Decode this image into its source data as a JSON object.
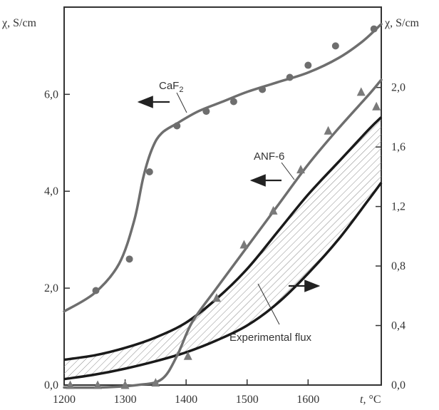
{
  "chart_data": {
    "type": "line",
    "x_range": [
      1200,
      1720
    ],
    "left_axis": {
      "label_chi": "χ",
      "label_unit": ", S/cm",
      "range": [
        0,
        7.8
      ],
      "ticks": [
        "0,0",
        "2,0",
        "4,0",
        "6,0"
      ],
      "tick_values": [
        0,
        2,
        4,
        6
      ]
    },
    "right_axis": {
      "label_chi": "χ",
      "label_unit": ", S/cm",
      "range": [
        0,
        2.54
      ],
      "ticks": [
        "0,0",
        "0,4",
        "0,8",
        "1,2",
        "1,6",
        "2,0"
      ],
      "tick_values": [
        0,
        0.4,
        0.8,
        1.2,
        1.6,
        2.0
      ]
    },
    "x_axis": {
      "label_t": "t",
      "label_unit": ", °C",
      "ticks": [
        "1200",
        "1300",
        "1400",
        "1500",
        "1600"
      ],
      "tick_values": [
        1200,
        1300,
        1400,
        1500,
        1600
      ]
    },
    "grid": false,
    "series": [
      {
        "name": "CaF",
        "subscript": "2",
        "axis": "left",
        "marker": "circle",
        "points": [
          [
            1252,
            1.95
          ],
          [
            1307,
            2.6
          ],
          [
            1340,
            4.4
          ],
          [
            1385,
            5.35
          ],
          [
            1433,
            5.65
          ],
          [
            1478,
            5.85
          ],
          [
            1525,
            6.1
          ],
          [
            1570,
            6.35
          ],
          [
            1600,
            6.6
          ],
          [
            1645,
            7.0
          ],
          [
            1708,
            7.35
          ]
        ],
        "curve": [
          [
            1200,
            1.52
          ],
          [
            1250,
            1.9
          ],
          [
            1290,
            2.5
          ],
          [
            1315,
            3.4
          ],
          [
            1330,
            4.3
          ],
          [
            1345,
            4.9
          ],
          [
            1360,
            5.2
          ],
          [
            1385,
            5.4
          ],
          [
            1420,
            5.65
          ],
          [
            1460,
            5.85
          ],
          [
            1500,
            6.05
          ],
          [
            1550,
            6.25
          ],
          [
            1600,
            6.45
          ],
          [
            1650,
            6.75
          ],
          [
            1690,
            7.1
          ],
          [
            1720,
            7.45
          ]
        ]
      },
      {
        "name": "ANF-6",
        "axis": "left",
        "marker": "triangle",
        "points": [
          [
            1210,
            0.0
          ],
          [
            1255,
            0.0
          ],
          [
            1300,
            0.0
          ],
          [
            1350,
            0.05
          ],
          [
            1403,
            0.6
          ],
          [
            1450,
            1.8
          ],
          [
            1495,
            2.9
          ],
          [
            1543,
            3.6
          ],
          [
            1588,
            4.45
          ],
          [
            1633,
            5.25
          ],
          [
            1687,
            6.05
          ],
          [
            1712,
            5.75
          ]
        ],
        "curve": [
          [
            1200,
            -0.05
          ],
          [
            1260,
            -0.05
          ],
          [
            1320,
            0.0
          ],
          [
            1360,
            0.12
          ],
          [
            1385,
            0.6
          ],
          [
            1410,
            1.3
          ],
          [
            1450,
            2.0
          ],
          [
            1500,
            2.85
          ],
          [
            1550,
            3.7
          ],
          [
            1600,
            4.55
          ],
          [
            1650,
            5.3
          ],
          [
            1700,
            6.0
          ],
          [
            1720,
            6.3
          ]
        ]
      },
      {
        "name": "Experimental flux",
        "axis": "right",
        "type": "band",
        "upper": [
          [
            1200,
            0.17
          ],
          [
            1250,
            0.2
          ],
          [
            1300,
            0.25
          ],
          [
            1350,
            0.32
          ],
          [
            1400,
            0.42
          ],
          [
            1450,
            0.58
          ],
          [
            1500,
            0.78
          ],
          [
            1550,
            1.03
          ],
          [
            1600,
            1.28
          ],
          [
            1650,
            1.5
          ],
          [
            1700,
            1.72
          ],
          [
            1720,
            1.8
          ]
        ],
        "lower": [
          [
            1200,
            0.04
          ],
          [
            1250,
            0.07
          ],
          [
            1300,
            0.11
          ],
          [
            1350,
            0.16
          ],
          [
            1400,
            0.22
          ],
          [
            1450,
            0.3
          ],
          [
            1500,
            0.4
          ],
          [
            1550,
            0.55
          ],
          [
            1600,
            0.75
          ],
          [
            1650,
            0.98
          ],
          [
            1700,
            1.25
          ],
          [
            1720,
            1.36
          ]
        ]
      }
    ],
    "annotations": [
      {
        "text": "CaF",
        "sub": "2",
        "arrow": "left"
      },
      {
        "text": "ANF-6",
        "arrow": "left"
      },
      {
        "text": "Experimental flux",
        "arrow": "right"
      }
    ]
  }
}
